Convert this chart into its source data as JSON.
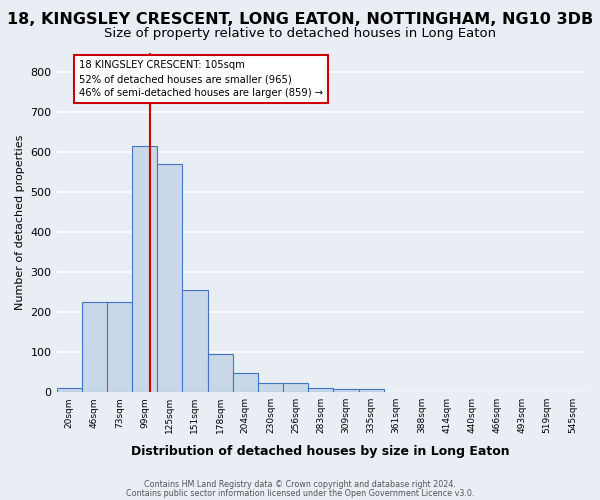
{
  "title": "18, KINGSLEY CRESCENT, LONG EATON, NOTTINGHAM, NG10 3DB",
  "subtitle": "Size of property relative to detached houses in Long Eaton",
  "xlabel": "Distribution of detached houses by size in Long Eaton",
  "ylabel": "Number of detached properties",
  "footer_line1": "Contains HM Land Registry data © Crown copyright and database right 2024.",
  "footer_line2": "Contains public sector information licensed under the Open Government Licence v3.0.",
  "bin_labels": [
    "20sqm",
    "46sqm",
    "73sqm",
    "99sqm",
    "125sqm",
    "151sqm",
    "178sqm",
    "204sqm",
    "230sqm",
    "256sqm",
    "283sqm",
    "309sqm",
    "335sqm",
    "361sqm",
    "388sqm",
    "414sqm",
    "440sqm",
    "466sqm",
    "493sqm",
    "519sqm",
    "545sqm"
  ],
  "bar_values": [
    10,
    225,
    225,
    615,
    570,
    255,
    95,
    48,
    23,
    23,
    10,
    7,
    7,
    0,
    0,
    0,
    0,
    0,
    0,
    0,
    0
  ],
  "bar_color": "#c8d8e8",
  "bar_edge_color": "#4472c4",
  "annotation_line1": "18 KINGSLEY CRESCENT: 105sqm",
  "annotation_line2": "52% of detached houses are smaller (965)",
  "annotation_line3": "46% of semi-detached houses are larger (859) →",
  "annotation_box_color": "#ffffff",
  "annotation_box_edge": "#cc0000",
  "red_line_color": "#cc0000",
  "ylim": [
    0,
    850
  ],
  "yticks": [
    0,
    100,
    200,
    300,
    400,
    500,
    600,
    700,
    800
  ],
  "background_color": "#e8eef4",
  "plot_background": "#e8eef4",
  "grid_color": "#ffffff",
  "title_fontsize": 11.5,
  "subtitle_fontsize": 9.5
}
